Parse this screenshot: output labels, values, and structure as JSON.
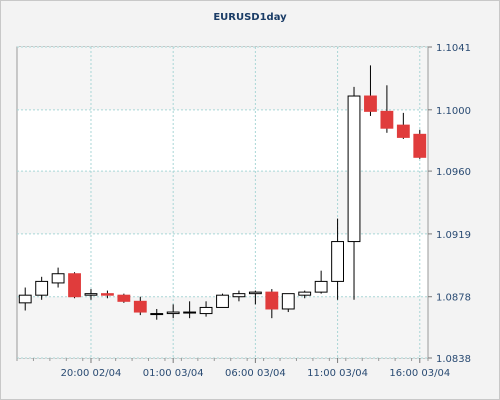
{
  "chart_data": {
    "type": "candlestick",
    "title": "EURUSD1day",
    "xlabel": "",
    "ylabel": "",
    "ylim": [
      1.0838,
      1.1041
    ],
    "y_ticks": [
      "1.0838",
      "1.0878",
      "1.0919",
      "1.0960",
      "1.1000",
      "1.1041"
    ],
    "x_ticks": [
      {
        "label": "20:00 02/04",
        "index": 4.5
      },
      {
        "label": "01:00 03/04",
        "index": 9.5
      },
      {
        "label": "06:00 03/04",
        "index": 14.5
      },
      {
        "label": "11:00 03/04",
        "index": 19.5
      },
      {
        "label": "16:00 03/04",
        "index": 24.5
      }
    ],
    "grid": true,
    "up_color": "#ffffff",
    "down_color": "#e03c3c",
    "candles": [
      {
        "open": 1.0874,
        "high": 1.0884,
        "low": 1.0869,
        "close": 1.0879
      },
      {
        "open": 1.0879,
        "high": 1.0891,
        "low": 1.0876,
        "close": 1.0888
      },
      {
        "open": 1.0887,
        "high": 1.0897,
        "low": 1.0884,
        "close": 1.0893
      },
      {
        "open": 1.0893,
        "high": 1.0894,
        "low": 1.0877,
        "close": 1.0878
      },
      {
        "open": 1.0879,
        "high": 1.0883,
        "low": 1.0876,
        "close": 1.088
      },
      {
        "open": 1.088,
        "high": 1.0882,
        "low": 1.0877,
        "close": 1.0879
      },
      {
        "open": 1.0879,
        "high": 1.088,
        "low": 1.0874,
        "close": 1.0875
      },
      {
        "open": 1.0875,
        "high": 1.0878,
        "low": 1.0866,
        "close": 1.0868
      },
      {
        "open": 1.0867,
        "high": 1.087,
        "low": 1.0863,
        "close": 1.0867
      },
      {
        "open": 1.0867,
        "high": 1.0873,
        "low": 1.0864,
        "close": 1.0868
      },
      {
        "open": 1.0868,
        "high": 1.0875,
        "low": 1.0864,
        "close": 1.0868
      },
      {
        "open": 1.0867,
        "high": 1.0875,
        "low": 1.0865,
        "close": 1.0871
      },
      {
        "open": 1.0871,
        "high": 1.088,
        "low": 1.0871,
        "close": 1.0879
      },
      {
        "open": 1.0878,
        "high": 1.0882,
        "low": 1.0875,
        "close": 1.088
      },
      {
        "open": 1.088,
        "high": 1.0882,
        "low": 1.0873,
        "close": 1.0881
      },
      {
        "open": 1.0881,
        "high": 1.0883,
        "low": 1.0864,
        "close": 1.087
      },
      {
        "open": 1.087,
        "high": 1.088,
        "low": 1.0868,
        "close": 1.088
      },
      {
        "open": 1.0879,
        "high": 1.0882,
        "low": 1.0877,
        "close": 1.0881
      },
      {
        "open": 1.0881,
        "high": 1.0895,
        "low": 1.088,
        "close": 1.0888
      },
      {
        "open": 1.0888,
        "high": 1.0929,
        "low": 1.0876,
        "close": 1.0914
      },
      {
        "open": 1.0914,
        "high": 1.1015,
        "low": 1.0876,
        "close": 1.1009
      },
      {
        "open": 1.1009,
        "high": 1.1029,
        "low": 1.0996,
        "close": 1.0999
      },
      {
        "open": 1.0999,
        "high": 1.1016,
        "low": 1.0985,
        "close": 1.0988
      },
      {
        "open": 1.099,
        "high": 1.0998,
        "low": 1.0981,
        "close": 1.0982
      },
      {
        "open": 1.0984,
        "high": 1.0987,
        "low": 1.0968,
        "close": 1.0969
      }
    ]
  }
}
